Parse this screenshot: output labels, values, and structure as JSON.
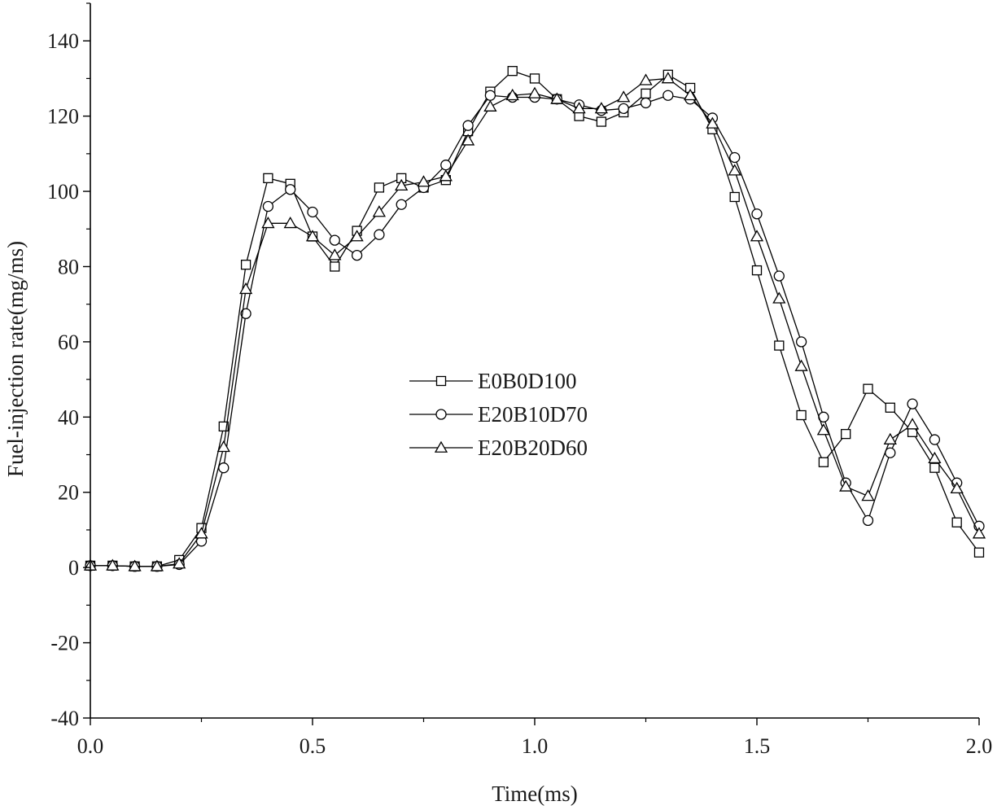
{
  "chart_data": {
    "type": "line",
    "title": "",
    "xlabel": "Time(ms)",
    "ylabel": "Fuel-injection rate(mg/ms)",
    "xlim": [
      0,
      2.0
    ],
    "ylim": [
      -40,
      150
    ],
    "xticks": [
      0.0,
      0.5,
      1.0,
      1.5,
      2.0
    ],
    "xtick_labels": [
      "0.0",
      "0.5",
      "1.0",
      "1.5",
      "2.0"
    ],
    "yticks": [
      -40,
      -20,
      0,
      20,
      40,
      60,
      80,
      100,
      120,
      140
    ],
    "ytick_labels": [
      "-40",
      "-20",
      "0",
      "20",
      "40",
      "60",
      "80",
      "100",
      "120",
      "140"
    ],
    "grid": false,
    "legend_position": "center-left",
    "x": [
      0.0,
      0.05,
      0.1,
      0.15,
      0.2,
      0.25,
      0.3,
      0.35,
      0.4,
      0.45,
      0.5,
      0.55,
      0.6,
      0.65,
      0.7,
      0.75,
      0.8,
      0.85,
      0.9,
      0.95,
      1.0,
      1.05,
      1.1,
      1.15,
      1.2,
      1.25,
      1.3,
      1.35,
      1.4,
      1.45,
      1.5,
      1.55,
      1.6,
      1.65,
      1.7,
      1.75,
      1.8,
      1.85,
      1.9,
      1.95,
      2.0
    ],
    "series": [
      {
        "name": "E0B0D100",
        "marker": "square",
        "values": [
          0.5,
          0.5,
          0.3,
          0.3,
          2.0,
          10.5,
          37.5,
          80.5,
          103.5,
          102.0,
          88.0,
          80.0,
          89.5,
          101.0,
          103.5,
          101.0,
          103.0,
          116.0,
          126.5,
          132.0,
          130.0,
          124.5,
          120.0,
          118.5,
          121.0,
          126.0,
          131.0,
          127.5,
          116.5,
          98.5,
          79.0,
          59.0,
          40.5,
          28.0,
          35.5,
          47.5,
          42.5,
          36.0,
          26.5,
          12.0,
          4.0
        ]
      },
      {
        "name": "E20B10D70",
        "marker": "circle",
        "values": [
          0.5,
          0.5,
          0.3,
          0.3,
          0.8,
          7.0,
          26.5,
          67.5,
          96.0,
          100.5,
          94.5,
          87.0,
          83.0,
          88.5,
          96.5,
          101.0,
          107.0,
          117.5,
          125.5,
          125.0,
          125.0,
          124.5,
          123.0,
          121.5,
          122.0,
          123.5,
          125.5,
          124.5,
          119.5,
          109.0,
          94.0,
          77.5,
          60.0,
          40.0,
          22.5,
          12.5,
          30.5,
          43.5,
          34.0,
          22.5,
          11.0
        ]
      },
      {
        "name": "E20B20D60",
        "marker": "triangle",
        "values": [
          0.5,
          0.5,
          0.3,
          0.3,
          1.0,
          9.0,
          32.0,
          74.0,
          91.5,
          91.5,
          88.0,
          83.0,
          88.0,
          94.5,
          101.5,
          102.5,
          104.0,
          113.5,
          122.5,
          125.5,
          126.0,
          124.5,
          122.0,
          122.0,
          125.0,
          129.5,
          130.0,
          125.5,
          118.0,
          105.5,
          88.0,
          71.5,
          53.5,
          36.5,
          21.5,
          19.0,
          34.0,
          38.0,
          29.0,
          21.0,
          9.0
        ]
      }
    ]
  }
}
